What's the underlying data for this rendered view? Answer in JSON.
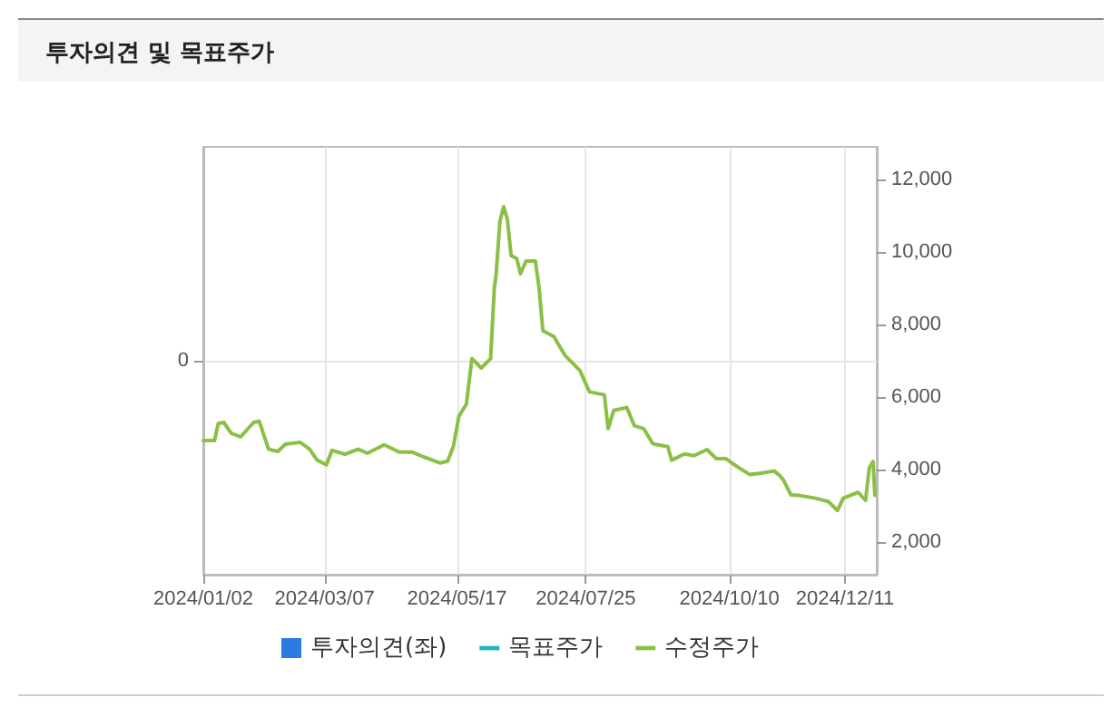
{
  "chart_data": {
    "type": "line",
    "title": "투자의견 및 목표주가",
    "annotations": [
      "0"
    ],
    "xlim": [
      "2024-01-02",
      "2024-12-28"
    ],
    "xticks": [
      {
        "value": "2024-01-02",
        "label": "2024/01/02"
      },
      {
        "value": "2024-03-07",
        "label": "2024/03/07"
      },
      {
        "value": "2024-05-17",
        "label": "2024/05/17"
      },
      {
        "value": "2024-07-25",
        "label": "2024/07/25"
      },
      {
        "value": "2024-10-10",
        "label": "2024/10/10"
      },
      {
        "value": "2024-12-11",
        "label": "2024/12/11"
      }
    ],
    "ylim": [
      1100,
      12900
    ],
    "yticks": [
      {
        "value": 2000,
        "label": "2,000"
      },
      {
        "value": 4000,
        "label": "4,000"
      },
      {
        "value": 6000,
        "label": "6,000"
      },
      {
        "value": 8000,
        "label": "8,000"
      },
      {
        "value": 10000,
        "label": "10,000"
      },
      {
        "value": 12000,
        "label": "12,000"
      }
    ],
    "grid": "x",
    "legend": "bottom",
    "marker": "none",
    "line_style": "solid",
    "series": [
      {
        "name": "투자의견(좌)",
        "type": "bar",
        "color": "#2a7ae2"
      },
      {
        "name": "목표주가",
        "color": "#1fb5c9"
      },
      {
        "name": "수정주가",
        "color": "#8bbf45",
        "x": [
          "2024-01-02",
          "2024-01-08",
          "2024-01-10",
          "2024-01-13",
          "2024-01-17",
          "2024-01-22",
          "2024-01-29",
          "2024-02-01",
          "2024-02-06",
          "2024-02-11",
          "2024-02-15",
          "2024-02-23",
          "2024-02-28",
          "2024-03-03",
          "2024-03-08",
          "2024-03-11",
          "2024-03-18",
          "2024-03-25",
          "2024-03-30",
          "2024-04-08",
          "2024-04-16",
          "2024-04-23",
          "2024-04-29",
          "2024-05-08",
          "2024-05-12",
          "2024-05-15",
          "2024-05-18",
          "2024-05-22",
          "2024-05-25",
          "2024-05-30",
          "2024-06-04",
          "2024-06-06",
          "2024-06-07",
          "2024-06-09",
          "2024-06-11",
          "2024-06-13",
          "2024-06-15",
          "2024-06-18",
          "2024-06-20",
          "2024-06-23",
          "2024-06-28",
          "2024-06-30",
          "2024-07-02",
          "2024-07-08",
          "2024-07-10",
          "2024-07-14",
          "2024-07-22",
          "2024-07-27",
          "2024-08-04",
          "2024-08-06",
          "2024-08-09",
          "2024-08-16",
          "2024-08-20",
          "2024-08-25",
          "2024-08-30",
          "2024-09-07",
          "2024-09-09",
          "2024-09-16",
          "2024-09-21",
          "2024-09-28",
          "2024-10-03",
          "2024-10-08",
          "2024-10-15",
          "2024-10-21",
          "2024-10-27",
          "2024-11-03",
          "2024-11-06",
          "2024-11-08",
          "2024-11-12",
          "2024-11-16",
          "2024-11-25",
          "2024-12-02",
          "2024-12-07",
          "2024-12-10",
          "2024-12-18",
          "2024-12-22",
          "2024-12-24",
          "2024-12-26",
          "2024-12-27"
        ],
        "values": [
          4800,
          4800,
          5270,
          5300,
          5000,
          4900,
          5300,
          5330,
          4560,
          4500,
          4700,
          4750,
          4560,
          4260,
          4130,
          4530,
          4420,
          4560,
          4450,
          4680,
          4480,
          4480,
          4350,
          4180,
          4230,
          4630,
          5470,
          5800,
          7060,
          6800,
          7060,
          9000,
          9400,
          10850,
          11250,
          10900,
          9900,
          9820,
          9400,
          9750,
          9750,
          9000,
          7830,
          7660,
          7480,
          7140,
          6720,
          6140,
          6060,
          5130,
          5630,
          5710,
          5210,
          5130,
          4710,
          4630,
          4260,
          4430,
          4380,
          4550,
          4300,
          4300,
          4050,
          3860,
          3900,
          3960,
          3830,
          3710,
          3300,
          3290,
          3210,
          3120,
          2870,
          3210,
          3370,
          3150,
          4050,
          4220,
          3290
        ]
      }
    ]
  }
}
